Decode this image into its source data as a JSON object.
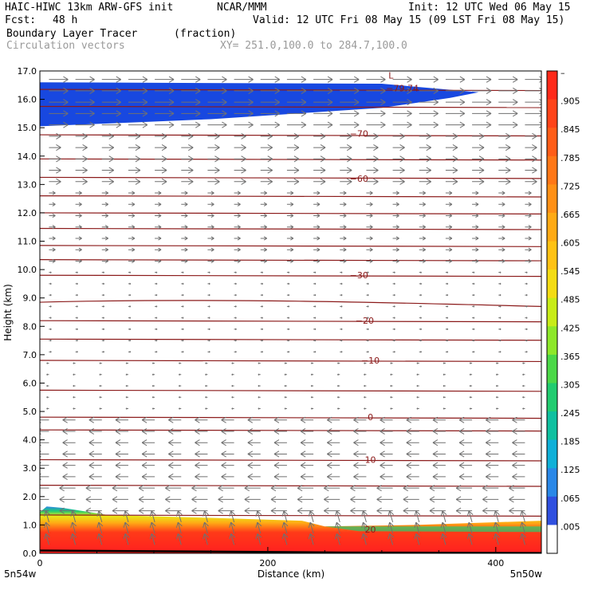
{
  "header": {
    "model": "HAIC-HIWC 13km ARW-GFS init",
    "org": "NCAR/MMM",
    "init": "Init: 12 UTC Wed 06 May 15",
    "fcst_label": "Fcst:",
    "fcst_value": "48 h",
    "valid": "Valid: 12 UTC Fri 08 May 15 (09 LST Fri 08 May 15)",
    "field1_name": "Boundary Layer Tracer",
    "field1_units": "(fraction)",
    "field2_name": "Circulation vectors",
    "xy_range": "XY= 251.0,100.0 to 284.7,100.0"
  },
  "colors": {
    "contour": "#8b1a1a",
    "vector": "#707070",
    "blue_fill": "#1848e0"
  },
  "chart_data": {
    "type": "heatmap",
    "xlabel": "Distance (km)",
    "ylabel": "Height (km)",
    "xlim": [
      0,
      440
    ],
    "ylim": [
      0,
      17
    ],
    "x_ticks": [
      0,
      200,
      400
    ],
    "y_ticks": [
      "0.0",
      "1.0",
      "2.0",
      "3.0",
      "4.0",
      "5.0",
      "6.0",
      "7.0",
      "8.0",
      "9.0",
      "10.0",
      "11.0",
      "12.0",
      "13.0",
      "14.0",
      "15.0",
      "16.0",
      "17.0"
    ],
    "x_left_label": "5n54w",
    "x_right_label": "5n50w",
    "colorbar_labels": [
      "–",
      ".905",
      ".845",
      ".785",
      ".725",
      ".665",
      ".605",
      ".545",
      ".485",
      ".425",
      ".365",
      ".305",
      ".245",
      ".185",
      ".125",
      ".065",
      ".005"
    ],
    "colorbar_colors": [
      "#ff2a1a",
      "#ff4419",
      "#ff5d18",
      "#ff7717",
      "#ff9016",
      "#ffaa15",
      "#ffc214",
      "#f4dc14",
      "#c8ec18",
      "#8ee82a",
      "#4cd848",
      "#22cc70",
      "#10c0a0",
      "#10b0d8",
      "#2a88e8",
      "#3050e0",
      "#ffffff"
    ],
    "contours": [
      {
        "label": "−79.74",
        "y": 16.4,
        "x": 318
      },
      {
        "label": "−70",
        "y": 14.8,
        "x": 280
      },
      {
        "label": "−60",
        "y": 13.2,
        "x": 280
      },
      {
        "label": "−30",
        "y": 9.8,
        "x": 280
      },
      {
        "label": "−20",
        "y": 8.2,
        "x": 285
      },
      {
        "label": "−10",
        "y": 6.8,
        "x": 290
      },
      {
        "label": "0",
        "y": 4.8,
        "x": 290
      },
      {
        "label": "10",
        "y": 3.3,
        "x": 290
      },
      {
        "label": "20",
        "y": 0.85,
        "x": 290
      }
    ],
    "extremum_label": "L"
  }
}
